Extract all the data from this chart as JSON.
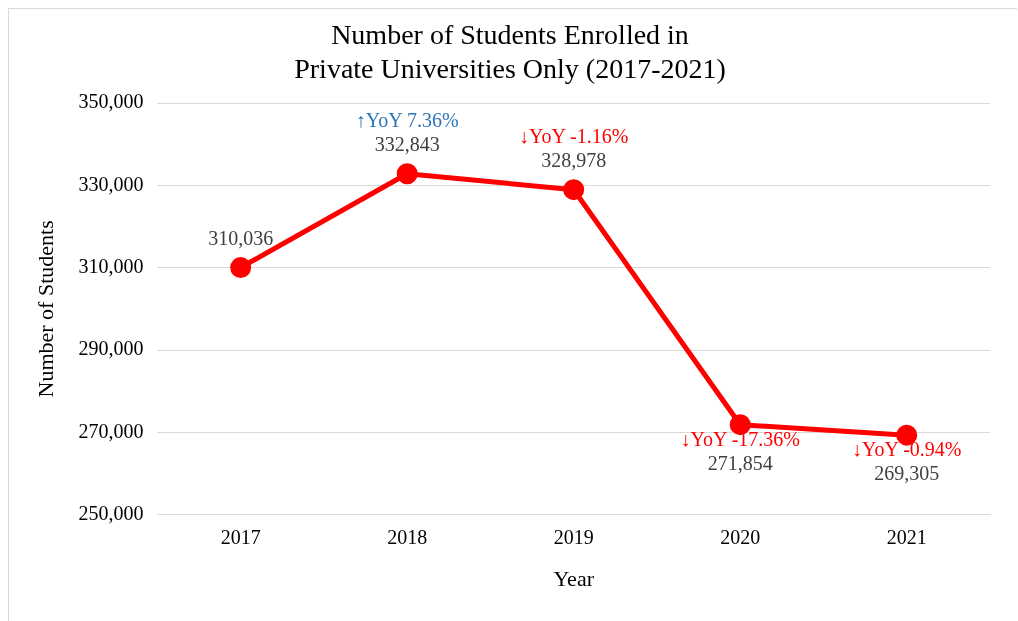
{
  "chart_data": {
    "type": "line",
    "title": "Number of Students Enrolled in\nPrivate Universities Only (2017-2021)",
    "xlabel": "Year",
    "ylabel": "Number of Students",
    "categories": [
      "2017",
      "2018",
      "2019",
      "2020",
      "2021"
    ],
    "series": [
      {
        "color": "#ff0000",
        "values": [
          310036,
          332843,
          328978,
          271854,
          269305
        ]
      }
    ],
    "ylim": [
      250000,
      350000
    ],
    "yticks": [
      {
        "value": 250000,
        "label": "250,000"
      },
      {
        "value": 270000,
        "label": "270,000"
      },
      {
        "value": 290000,
        "label": "290,000"
      },
      {
        "value": 310000,
        "label": "310,000"
      },
      {
        "value": 330000,
        "label": "330,000"
      },
      {
        "value": 350000,
        "label": "350,000"
      }
    ],
    "value_labels": [
      "310,036",
      "332,843",
      "328,978",
      "271,854",
      "269,305"
    ],
    "grid": "y",
    "legend": false,
    "marker": "circle",
    "line_style": "solid",
    "annotations": [
      {
        "text": "↑YoY 7.36%",
        "x": "2018",
        "y": 332843
      },
      {
        "text": "↓YoY -1.16%",
        "x": "2019",
        "y": 328978
      },
      {
        "text": "↓YoY -17.36%",
        "x": "2020",
        "y": 271854
      },
      {
        "text": "↓YoY -0.94%",
        "x": "2021",
        "y": 269305
      }
    ]
  }
}
